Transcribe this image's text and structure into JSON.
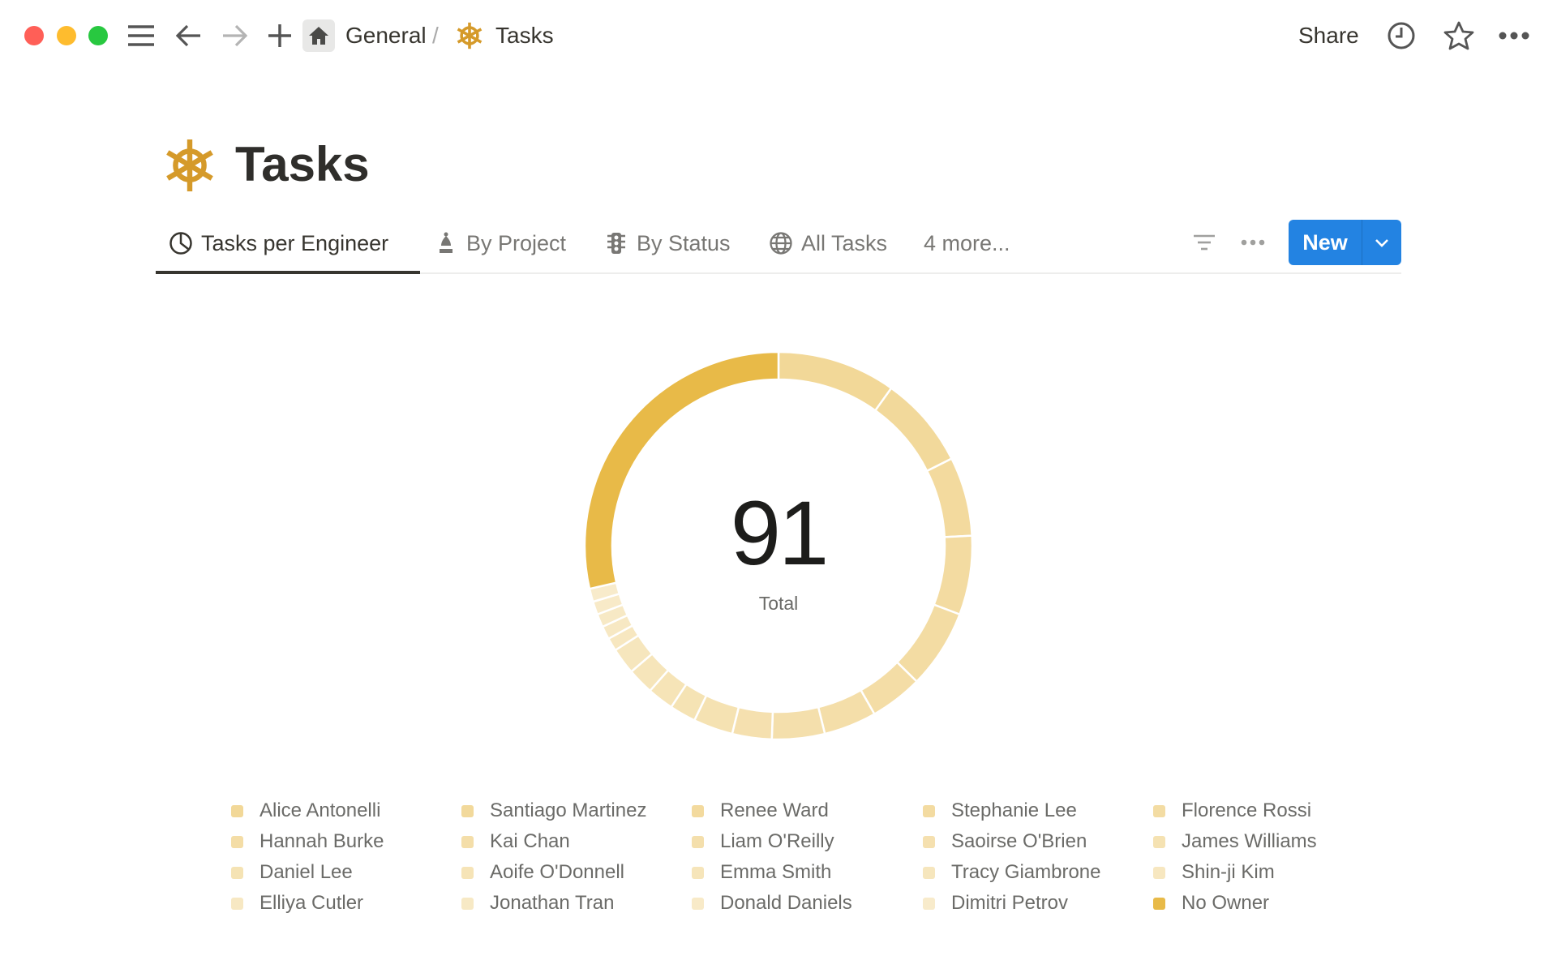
{
  "window": {
    "traffic_lights": [
      "#FF5F57",
      "#FEBC2E",
      "#28C840"
    ]
  },
  "topbar": {
    "breadcrumb": [
      {
        "label": "General",
        "icon": "home-icon"
      },
      {
        "label": "Tasks",
        "icon": "ship-wheel-icon"
      }
    ],
    "separator": "/",
    "share_label": "Share"
  },
  "page": {
    "title": "Tasks",
    "icon": "ship-wheel-icon",
    "icon_color": "#D59A2A"
  },
  "tabs": [
    {
      "label": "Tasks per Engineer",
      "icon": "pie-chart-icon",
      "active": true
    },
    {
      "label": "By Project",
      "icon": "chess-bishop-icon"
    },
    {
      "label": "By Status",
      "icon": "traffic-light-icon"
    },
    {
      "label": "All Tasks",
      "icon": "globe-icon"
    },
    {
      "label": "4 more..."
    }
  ],
  "toolbar": {
    "new_label": "New",
    "accent": "#2383E2"
  },
  "chart_data": {
    "type": "pie",
    "style": "donut",
    "center_value": "91",
    "center_label": "Total",
    "legend_placement": "bottom",
    "categories": [
      "Alice Antonelli",
      "Santiago Martinez",
      "Renee Ward",
      "Stephanie Lee",
      "Florence Rossi",
      "Hannah Burke",
      "Kai Chan",
      "Liam O'Reilly",
      "Saoirse O'Brien",
      "James Williams",
      "Daniel Lee",
      "Aoife O'Donnell",
      "Emma Smith",
      "Tracy Giambrone",
      "Shin-ji Kim",
      "Elliya Cutler",
      "Jonathan Tran",
      "Donald Daniels",
      "Dimitri Petrov",
      "No Owner"
    ],
    "values": [
      9,
      7,
      6,
      6,
      6,
      4,
      4,
      4,
      3,
      3,
      2,
      2,
      2,
      2,
      1,
      1,
      1,
      1,
      1,
      26
    ],
    "colors": {
      "engineer_start": "#F2D898",
      "engineer_end": "#F8EBCB",
      "no_owner": "#E8BA48"
    }
  }
}
